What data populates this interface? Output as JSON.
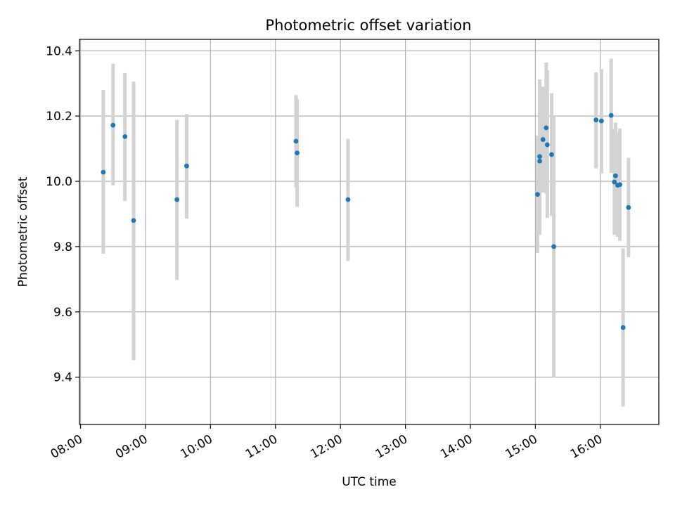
{
  "chart_data": {
    "type": "scatter",
    "title": "Photometric offset variation",
    "xlabel": "UTC time",
    "ylabel": "Photometric offset",
    "x_axis": {
      "kind": "time",
      "range": [
        "07:59",
        "16:54"
      ],
      "ticks": [
        "08:00",
        "09:00",
        "10:00",
        "11:00",
        "12:00",
        "13:00",
        "14:00",
        "15:00",
        "16:00"
      ],
      "tick_rotation_deg": 30
    },
    "y_axis": {
      "range": [
        9.255,
        10.435
      ],
      "ticks": [
        9.4,
        9.6,
        9.8,
        10.0,
        10.2,
        10.4
      ],
      "tick_labels": [
        "9.4",
        "9.6",
        "9.8",
        "10.0",
        "10.2",
        "10.4"
      ]
    },
    "grid": true,
    "colors": {
      "point": "#1f77b4",
      "errorbar": "#d3d3d3",
      "grid": "#b0b0b0"
    },
    "series": [
      {
        "points": [
          {
            "x": "08:21",
            "y": 10.028,
            "yerr_low": 9.778,
            "yerr_high": 10.28
          },
          {
            "x": "08:30",
            "y": 10.172,
            "yerr_low": 9.988,
            "yerr_high": 10.36
          },
          {
            "x": "08:41",
            "y": 10.137,
            "yerr_low": 9.94,
            "yerr_high": 10.332
          },
          {
            "x": "08:49",
            "y": 9.88,
            "yerr_low": 9.452,
            "yerr_high": 10.306
          },
          {
            "x": "09:29",
            "y": 9.944,
            "yerr_low": 9.698,
            "yerr_high": 10.188
          },
          {
            "x": "09:38",
            "y": 10.047,
            "yerr_low": 9.886,
            "yerr_high": 10.206
          },
          {
            "x": "11:19",
            "y": 10.123,
            "yerr_low": 9.98,
            "yerr_high": 10.264
          },
          {
            "x": "11:20",
            "y": 10.087,
            "yerr_low": 9.922,
            "yerr_high": 10.252
          },
          {
            "x": "12:07",
            "y": 9.944,
            "yerr_low": 9.756,
            "yerr_high": 10.13
          },
          {
            "x": "15:02",
            "y": 9.96,
            "yerr_low": 9.78,
            "yerr_high": 10.14
          },
          {
            "x": "15:04",
            "y": 10.076,
            "yerr_low": 9.836,
            "yerr_high": 10.312
          },
          {
            "x": "15:04",
            "y": 10.062,
            "yerr_low": 9.84,
            "yerr_high": 10.284
          },
          {
            "x": "15:07",
            "y": 10.128,
            "yerr_low": 9.966,
            "yerr_high": 10.29
          },
          {
            "x": "15:10",
            "y": 10.164,
            "yerr_low": 9.962,
            "yerr_high": 10.364
          },
          {
            "x": "15:11",
            "y": 10.112,
            "yerr_low": 9.888,
            "yerr_high": 10.34
          },
          {
            "x": "15:15",
            "y": 10.082,
            "yerr_low": 9.894,
            "yerr_high": 10.27
          },
          {
            "x": "15:17",
            "y": 9.8,
            "yerr_low": 9.4,
            "yerr_high": 10.2
          },
          {
            "x": "15:56",
            "y": 10.188,
            "yerr_low": 10.04,
            "yerr_high": 10.334
          },
          {
            "x": "16:01",
            "y": 10.185,
            "yerr_low": 10.024,
            "yerr_high": 10.344
          },
          {
            "x": "16:10",
            "y": 10.202,
            "yerr_low": 10.026,
            "yerr_high": 10.376
          },
          {
            "x": "16:13",
            "y": 9.998,
            "yerr_low": 9.836,
            "yerr_high": 10.16
          },
          {
            "x": "16:14",
            "y": 10.017,
            "yerr_low": 9.84,
            "yerr_high": 10.18
          },
          {
            "x": "16:16",
            "y": 9.988,
            "yerr_low": 9.83,
            "yerr_high": 10.15
          },
          {
            "x": "16:18",
            "y": 9.99,
            "yerr_low": 9.818,
            "yerr_high": 10.162
          },
          {
            "x": "16:21",
            "y": 9.552,
            "yerr_low": 9.31,
            "yerr_high": 9.794
          },
          {
            "x": "16:26",
            "y": 9.92,
            "yerr_low": 9.768,
            "yerr_high": 10.072
          }
        ]
      }
    ]
  }
}
